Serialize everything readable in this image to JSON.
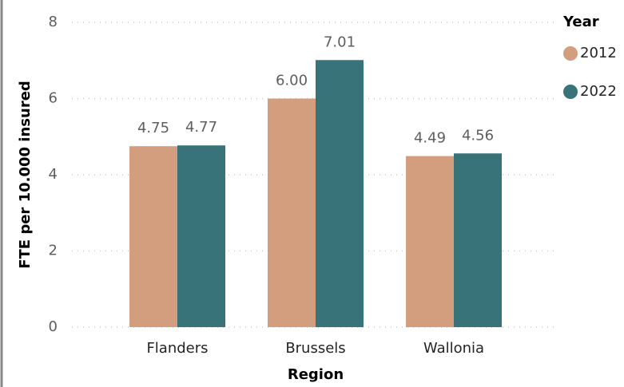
{
  "chart_data": {
    "type": "bar",
    "xlabel": "Region",
    "ylabel": "FTE per 10.000 insured",
    "categories": [
      "Flanders",
      "Brussels",
      "Wallonia"
    ],
    "series": [
      {
        "name": "2012",
        "color": "#d39e7e",
        "values": [
          4.75,
          6,
          4.49
        ],
        "value_labels": [
          "4.75",
          "6.00",
          "4.49"
        ]
      },
      {
        "name": "2022",
        "color": "#377378",
        "values": [
          4.77,
          7.01,
          4.56
        ],
        "value_labels": [
          "4.77",
          "7.01",
          "4.56"
        ]
      }
    ],
    "legend_title": "Year",
    "legend": "right",
    "ylim": [
      0,
      8
    ],
    "yticks": [
      0,
      2,
      4,
      6,
      8
    ],
    "grid": true
  }
}
